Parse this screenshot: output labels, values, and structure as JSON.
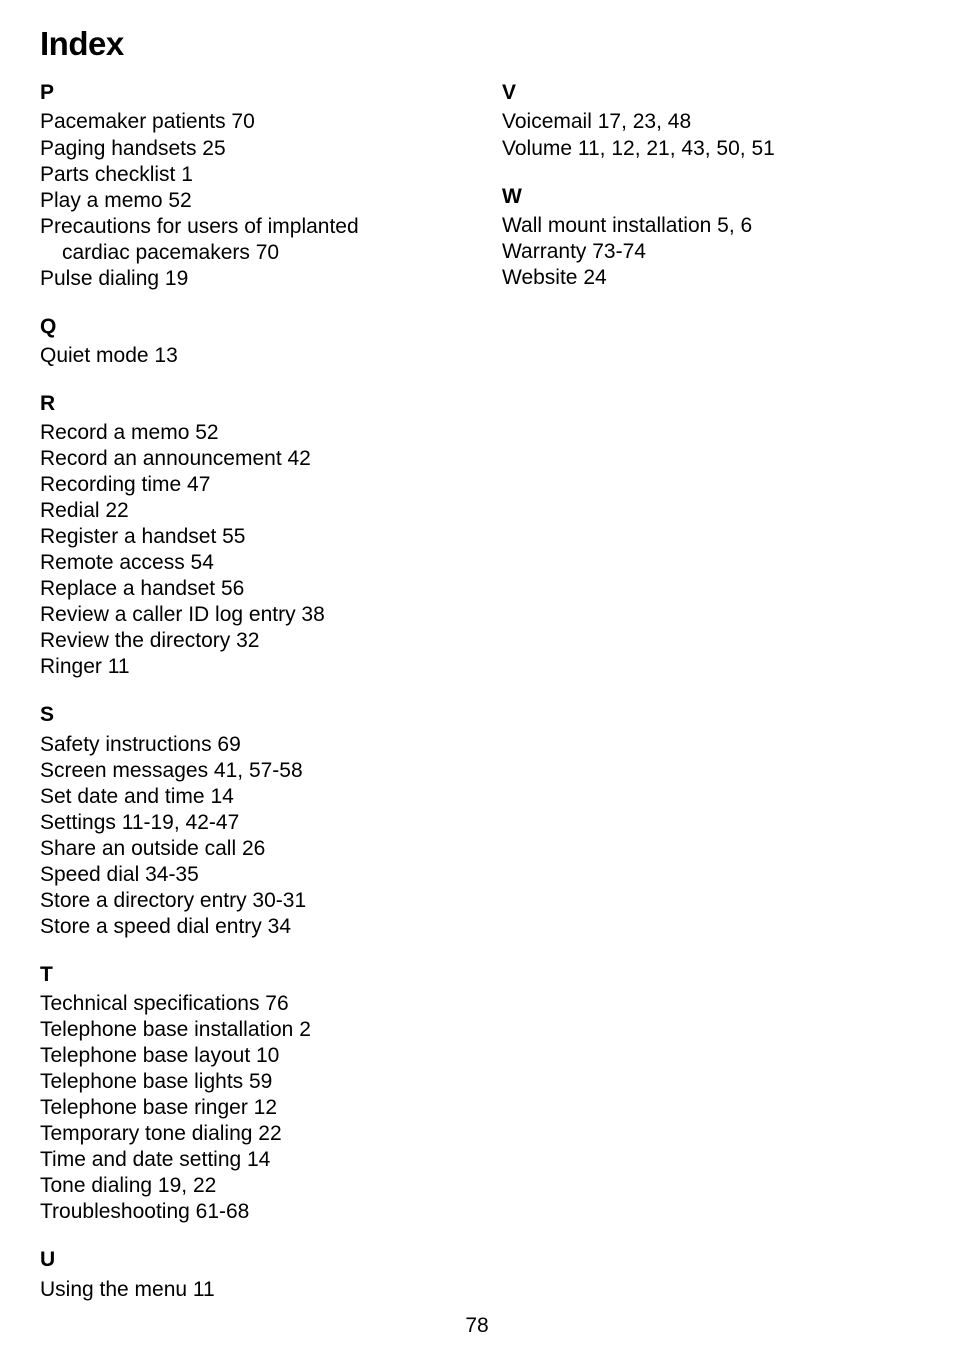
{
  "title": "Index",
  "page_number": "78",
  "columns": [
    {
      "sections": [
        {
          "letter": "P",
          "entries": [
            {
              "lines": [
                "Pacemaker patients  70"
              ]
            },
            {
              "lines": [
                "Paging handsets  25"
              ]
            },
            {
              "lines": [
                "Parts checklist  1"
              ]
            },
            {
              "lines": [
                "Play a memo  52"
              ]
            },
            {
              "lines": [
                "Precautions for users of implanted",
                "cardiac pacemakers  70"
              ],
              "hanging": true
            },
            {
              "lines": [
                "Pulse dialing  19"
              ]
            }
          ]
        },
        {
          "letter": "Q",
          "entries": [
            {
              "lines": [
                "Quiet mode  13"
              ]
            }
          ]
        },
        {
          "letter": "R",
          "entries": [
            {
              "lines": [
                "Record a memo  52"
              ]
            },
            {
              "lines": [
                "Record an announcement  42"
              ]
            },
            {
              "lines": [
                "Recording time  47"
              ]
            },
            {
              "lines": [
                "Redial  22"
              ]
            },
            {
              "lines": [
                "Register a handset  55"
              ]
            },
            {
              "lines": [
                "Remote access  54"
              ]
            },
            {
              "lines": [
                "Replace a handset  56"
              ]
            },
            {
              "lines": [
                "Review a caller ID log entry  38"
              ]
            },
            {
              "lines": [
                "Review the directory  32"
              ]
            },
            {
              "lines": [
                "Ringer  11"
              ]
            }
          ]
        },
        {
          "letter": "S",
          "entries": [
            {
              "lines": [
                "Safety instructions  69"
              ]
            },
            {
              "lines": [
                "Screen messages  41, 57-58"
              ]
            },
            {
              "lines": [
                "Set date and time  14"
              ]
            },
            {
              "lines": [
                "Settings  11-19, 42-47"
              ]
            },
            {
              "lines": [
                "Share an outside call  26"
              ]
            },
            {
              "lines": [
                "Speed dial  34-35"
              ]
            },
            {
              "lines": [
                "Store a directory entry  30-31"
              ]
            },
            {
              "lines": [
                "Store a speed dial entry  34"
              ]
            }
          ]
        },
        {
          "letter": "T",
          "entries": [
            {
              "lines": [
                "Technical specifications  76"
              ]
            },
            {
              "lines": [
                "Telephone base installation  2"
              ]
            },
            {
              "lines": [
                "Telephone base layout  10"
              ]
            },
            {
              "lines": [
                "Telephone base lights  59"
              ]
            },
            {
              "lines": [
                "Telephone base ringer  12"
              ]
            },
            {
              "lines": [
                "Temporary tone dialing  22"
              ]
            },
            {
              "lines": [
                "Time and date setting  14"
              ]
            },
            {
              "lines": [
                "Tone dialing  19, 22"
              ]
            },
            {
              "lines": [
                "Troubleshooting  61-68"
              ]
            }
          ]
        },
        {
          "letter": "U",
          "entries": [
            {
              "lines": [
                "Using the menu  11"
              ]
            }
          ]
        }
      ]
    },
    {
      "sections": [
        {
          "letter": "V",
          "entries": [
            {
              "lines": [
                "Voicemail  17, 23, 48"
              ]
            },
            {
              "lines": [
                "Volume  11, 12, 21, 43, 50, 51"
              ]
            }
          ]
        },
        {
          "letter": "W",
          "entries": [
            {
              "lines": [
                "Wall mount installation  5, 6"
              ]
            },
            {
              "lines": [
                "Warranty  73-74"
              ]
            },
            {
              "lines": [
                "Website  24"
              ]
            }
          ]
        }
      ]
    }
  ]
}
